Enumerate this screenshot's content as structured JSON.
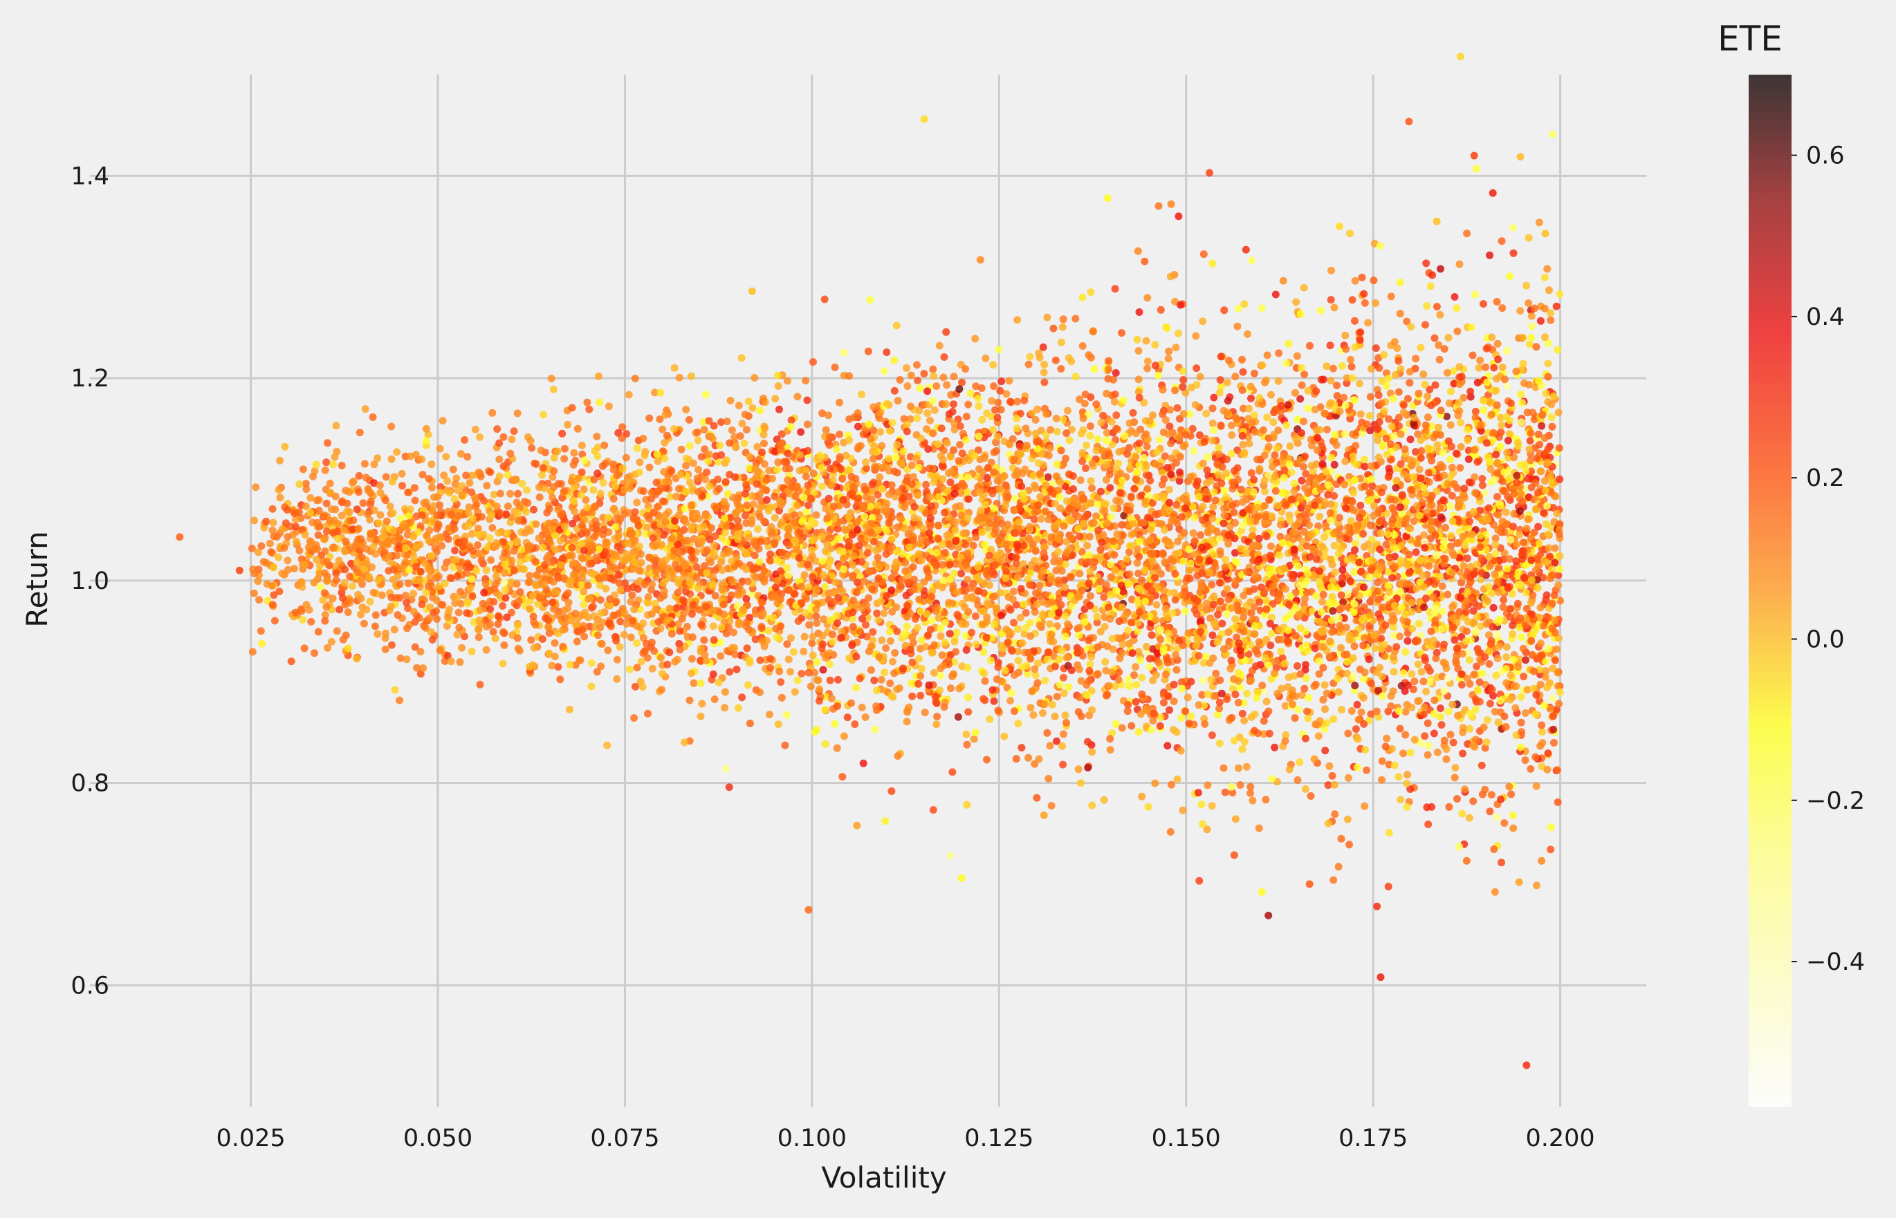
{
  "chart_data": {
    "type": "scatter",
    "title": "",
    "xlabel": "Volatility",
    "ylabel": "Return",
    "xlim": [
      0.0035,
      0.2115
    ],
    "ylim": [
      0.48,
      1.5
    ],
    "xticks": [
      0.025,
      0.05,
      0.075,
      0.1,
      0.125,
      0.15,
      0.175,
      0.2
    ],
    "xtick_labels": [
      "0.025",
      "0.050",
      "0.075",
      "0.100",
      "0.125",
      "0.150",
      "0.175",
      "0.200"
    ],
    "yticks": [
      0.6,
      0.8,
      1.0,
      1.2,
      1.4
    ],
    "ytick_labels": [
      "0.6",
      "0.8",
      "1.0",
      "1.2",
      "1.4"
    ],
    "grid": true,
    "colorbar": {
      "label": "ETE",
      "colormap": "hot_r",
      "range": [
        -0.58,
        0.7
      ],
      "ticks": [
        -0.4,
        -0.2,
        0.0,
        0.2,
        0.4,
        0.6
      ],
      "tick_labels": [
        "−0.4",
        "−0.2",
        "0.0",
        "0.2",
        "0.4",
        "0.6"
      ]
    },
    "cloud": {
      "n_points": 9000,
      "x_range": [
        0.025,
        0.2
      ],
      "return_center": 1.03,
      "return_spread_at_low_vol": 0.04,
      "return_spread_at_high_vol": 0.12,
      "ete_center": 0.1,
      "ete_spread": 0.11
    },
    "points": [
      {
        "x": 0.0155,
        "y": 1.043,
        "c": 0.18
      },
      {
        "x": 0.0235,
        "y": 1.01,
        "c": 0.25
      },
      {
        "x": 0.026,
        "y": 1.028,
        "c": 0.05
      },
      {
        "x": 0.038,
        "y": 0.933,
        "c": -0.05
      },
      {
        "x": 0.0885,
        "y": 0.814,
        "c": -0.3
      },
      {
        "x": 0.115,
        "y": 1.456,
        "c": -0.05
      },
      {
        "x": 0.092,
        "y": 1.286,
        "c": 0.0
      },
      {
        "x": 0.106,
        "y": 0.758,
        "c": 0.05
      },
      {
        "x": 0.1185,
        "y": 0.728,
        "c": -0.3
      },
      {
        "x": 0.12,
        "y": 0.706,
        "c": -0.1
      },
      {
        "x": 0.1225,
        "y": 1.317,
        "c": 0.1
      },
      {
        "x": 0.131,
        "y": 0.768,
        "c": 0.05
      },
      {
        "x": 0.1395,
        "y": 1.378,
        "c": -0.1
      },
      {
        "x": 0.148,
        "y": 1.372,
        "c": 0.1
      },
      {
        "x": 0.149,
        "y": 1.36,
        "c": 0.35
      },
      {
        "x": 0.158,
        "y": 1.327,
        "c": 0.3
      },
      {
        "x": 0.161,
        "y": 0.669,
        "c": 0.5
      },
      {
        "x": 0.1665,
        "y": 0.7,
        "c": 0.2
      },
      {
        "x": 0.169,
        "y": 0.76,
        "c": 0.0
      },
      {
        "x": 0.1705,
        "y": 1.35,
        "c": -0.05
      },
      {
        "x": 0.1755,
        "y": 0.678,
        "c": 0.3
      },
      {
        "x": 0.176,
        "y": 0.608,
        "c": 0.35
      },
      {
        "x": 0.1835,
        "y": 1.355,
        "c": 0.0
      },
      {
        "x": 0.184,
        "y": 1.308,
        "c": 0.45
      },
      {
        "x": 0.1865,
        "y": 0.737,
        "c": -0.2
      },
      {
        "x": 0.1875,
        "y": 0.723,
        "c": 0.15
      },
      {
        "x": 0.1885,
        "y": 1.42,
        "c": 0.25
      },
      {
        "x": 0.1888,
        "y": 1.407,
        "c": -0.15
      },
      {
        "x": 0.191,
        "y": 1.383,
        "c": 0.35
      },
      {
        "x": 0.1915,
        "y": 0.766,
        "c": -0.3
      },
      {
        "x": 0.1945,
        "y": 0.702,
        "c": 0.05
      },
      {
        "x": 0.1955,
        "y": 0.521,
        "c": 0.3
      },
      {
        "x": 0.199,
        "y": 1.441,
        "c": -0.2
      },
      {
        "x": 0.198,
        "y": 1.343,
        "c": 0.0
      },
      {
        "x": 0.1985,
        "y": 1.287,
        "c": 0.05
      },
      {
        "x": 0.1995,
        "y": 1.271,
        "c": 0.3
      },
      {
        "x": 0.1975,
        "y": 0.723,
        "c": 0.1
      }
    ]
  }
}
